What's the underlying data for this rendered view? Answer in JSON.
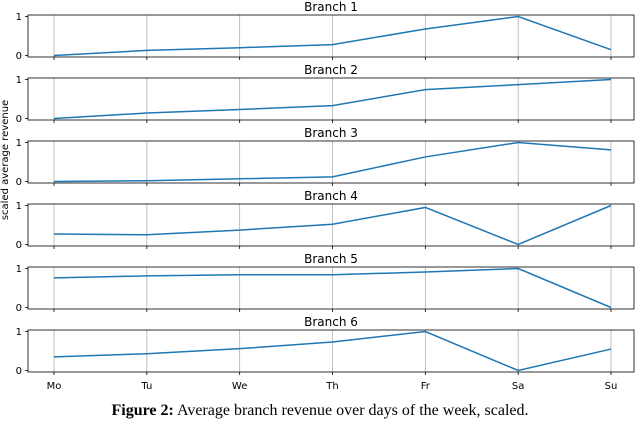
{
  "chart_data": {
    "type": "line",
    "categories": [
      "Mo",
      "Tu",
      "We",
      "Th",
      "Fr",
      "Sa",
      "Su"
    ],
    "ylabel": "scaled average revenue",
    "yticks": [
      0,
      1
    ],
    "ylim": [
      0,
      1
    ],
    "grid": "vertical",
    "series_color": "#1f77b4",
    "panels": [
      {
        "title": "Branch 1",
        "values": [
          0.0,
          0.13,
          0.2,
          0.28,
          0.68,
          1.0,
          0.15
        ]
      },
      {
        "title": "Branch 2",
        "values": [
          0.0,
          0.14,
          0.23,
          0.33,
          0.74,
          0.87,
          1.0
        ]
      },
      {
        "title": "Branch 3",
        "values": [
          0.0,
          0.02,
          0.07,
          0.12,
          0.63,
          1.0,
          0.81
        ]
      },
      {
        "title": "Branch 4",
        "values": [
          0.27,
          0.25,
          0.37,
          0.52,
          0.95,
          0.0,
          1.0
        ]
      },
      {
        "title": "Branch 5",
        "values": [
          0.76,
          0.81,
          0.84,
          0.84,
          0.91,
          1.0,
          0.0
        ]
      },
      {
        "title": "Branch 6",
        "values": [
          0.35,
          0.43,
          0.56,
          0.73,
          1.0,
          0.0,
          0.55
        ]
      }
    ]
  },
  "caption": {
    "label": "Figure 2:",
    "text": " Average branch revenue over days of the week, scaled."
  }
}
